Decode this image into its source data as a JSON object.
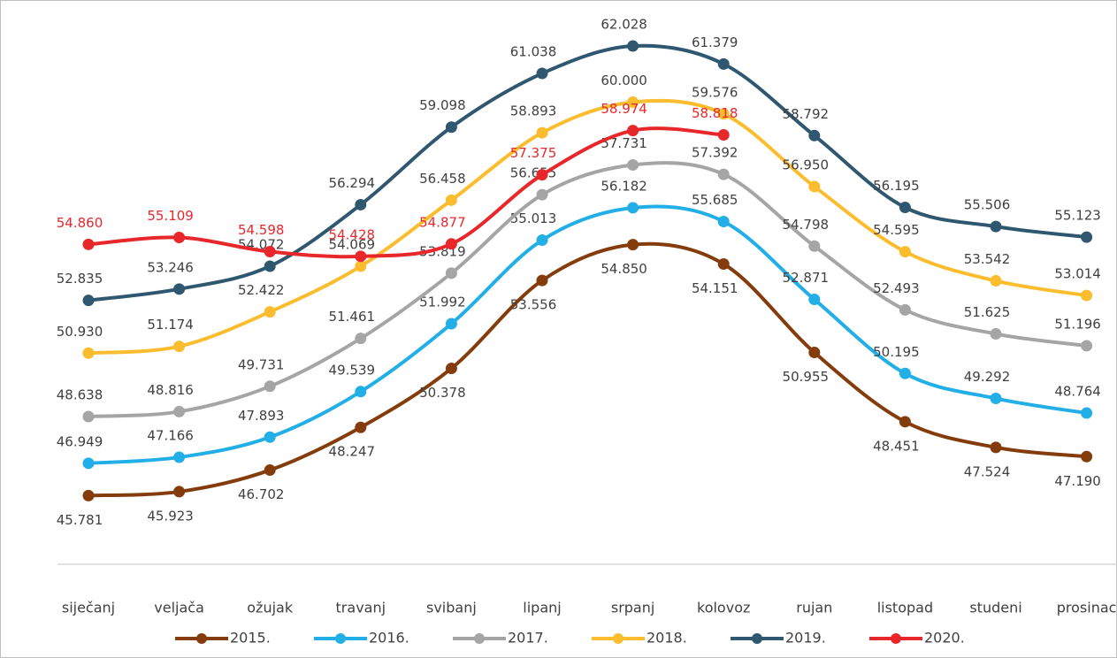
{
  "chart_data": {
    "type": "line",
    "categories": [
      "siječanj",
      "veljača",
      "ožujak",
      "travanj",
      "svibanj",
      "lipanj",
      "srpanj",
      "kolovoz",
      "rujan",
      "listopad",
      "studeni",
      "prosinac"
    ],
    "ylim": [
      43.3,
      63.5
    ],
    "series": [
      {
        "name": "2015.",
        "color": "#843c0c",
        "values": [
          45.781,
          45.923,
          46.702,
          48.247,
          50.378,
          53.556,
          54.85,
          54.151,
          50.955,
          48.451,
          47.524,
          47.19
        ],
        "value_labels": [
          "45.781",
          "45.923",
          "46.702",
          "48.247",
          "50.378",
          "53.556",
          "54.850",
          "54.151",
          "50.955",
          "48.451",
          "47.524",
          "47.190"
        ]
      },
      {
        "name": "2016.",
        "color": "#22aee6",
        "values": [
          46.949,
          47.166,
          47.893,
          49.539,
          51.992,
          55.013,
          56.182,
          55.685,
          52.871,
          50.195,
          49.292,
          48.764
        ],
        "value_labels": [
          "46.949",
          "47.166",
          "47.893",
          "49.539",
          "51.992",
          "55.013",
          "56.182",
          "55.685",
          "52.871",
          "50.195",
          "49.292",
          "48.764"
        ]
      },
      {
        "name": "2017.",
        "color": "#a5a5a5",
        "values": [
          48.638,
          48.816,
          49.731,
          51.461,
          53.819,
          56.655,
          57.731,
          57.392,
          54.798,
          52.493,
          51.625,
          51.196
        ],
        "value_labels": [
          "48.638",
          "48.816",
          "49.731",
          "51.461",
          "53.819",
          "56.655",
          "57.731",
          "57.392",
          "54.798",
          "52.493",
          "51.625",
          "51.196"
        ]
      },
      {
        "name": "2018.",
        "color": "#fbbd2e",
        "values": [
          50.93,
          51.174,
          52.422,
          54.069,
          56.458,
          58.893,
          60.0,
          59.576,
          56.95,
          54.595,
          53.542,
          53.014
        ],
        "value_labels": [
          "50.930",
          "51.174",
          "52.422",
          "54.069",
          "56.458",
          "58.893",
          "60.000",
          "59.576",
          "56.950",
          "54.595",
          "53.542",
          "53.014"
        ]
      },
      {
        "name": "2019.",
        "color": "#2f5870",
        "values": [
          52.835,
          53.246,
          54.072,
          56.294,
          59.098,
          61.038,
          62.028,
          61.379,
          58.792,
          56.195,
          55.506,
          55.123
        ],
        "value_labels": [
          "52.835",
          "53.246",
          "54.072",
          "56.294",
          "59.098",
          "61.038",
          "62.028",
          "61.379",
          "58.792",
          "56.195",
          "55.506",
          "55.123"
        ]
      },
      {
        "name": "2020.",
        "color": "#e8272b",
        "values": [
          54.86,
          55.109,
          54.598,
          54.428,
          54.877,
          57.375,
          58.974,
          58.818,
          null,
          null,
          null,
          null
        ],
        "value_labels": [
          "54.860",
          "55.109",
          "54.598",
          "54.428",
          "54.877",
          "57.375",
          "58.974",
          "58.818",
          null,
          null,
          null,
          null
        ]
      }
    ]
  }
}
